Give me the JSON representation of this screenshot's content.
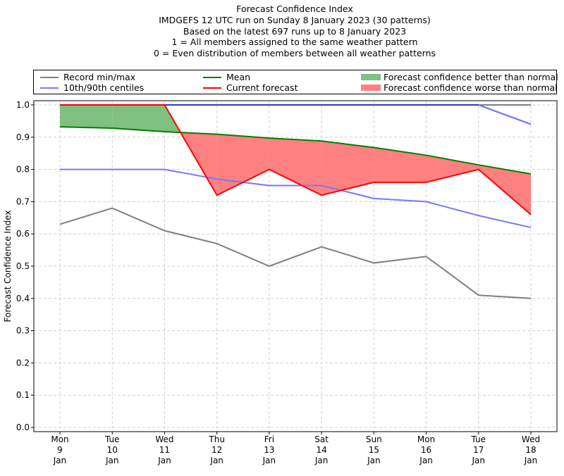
{
  "chart_data": {
    "type": "line",
    "title_lines": [
      "Forecast Confidence Index",
      "IMDGEFS 12 UTC run on Sunday 8 January 2023 (30 patterns)",
      "Based on the latest 697 runs up to 8 January 2023",
      "1 = All members assigned to the same weather pattern",
      "0 = Even distribution of members between all weather patterns"
    ],
    "xlabel": "",
    "ylabel": "Forecast Confidence Index",
    "ylim": [
      0.0,
      1.0
    ],
    "yticks": [
      "0.0",
      "0.1",
      "0.2",
      "0.3",
      "0.4",
      "0.5",
      "0.6",
      "0.7",
      "0.8",
      "0.9",
      "1.0"
    ],
    "grid": true,
    "categories": [
      {
        "day": "Mon",
        "date": "9",
        "month": "Jan"
      },
      {
        "day": "Tue",
        "date": "10",
        "month": "Jan"
      },
      {
        "day": "Wed",
        "date": "11",
        "month": "Jan"
      },
      {
        "day": "Thu",
        "date": "12",
        "month": "Jan"
      },
      {
        "day": "Fri",
        "date": "13",
        "month": "Jan"
      },
      {
        "day": "Sat",
        "date": "14",
        "month": "Jan"
      },
      {
        "day": "Sun",
        "date": "15",
        "month": "Jan"
      },
      {
        "day": "Mon",
        "date": "16",
        "month": "Jan"
      },
      {
        "day": "Tue",
        "date": "17",
        "month": "Jan"
      },
      {
        "day": "Wed",
        "date": "18",
        "month": "Jan"
      }
    ],
    "series": [
      {
        "name": "Record max",
        "color": "#7f7f7f",
        "values": [
          1.0,
          1.0,
          1.0,
          1.0,
          1.0,
          1.0,
          1.0,
          1.0,
          1.0,
          1.0
        ]
      },
      {
        "name": "Record min",
        "color": "#7f7f7f",
        "values": [
          0.63,
          0.68,
          0.61,
          0.57,
          0.5,
          0.56,
          0.51,
          0.53,
          0.41,
          0.4
        ]
      },
      {
        "name": "90th centile",
        "color": "#7777ff",
        "values": [
          1.0,
          1.0,
          1.0,
          1.0,
          1.0,
          1.0,
          1.0,
          1.0,
          1.0,
          0.94
        ]
      },
      {
        "name": "10th centile",
        "color": "#7777ff",
        "values": [
          0.8,
          0.8,
          0.8,
          0.77,
          0.75,
          0.75,
          0.71,
          0.7,
          0.657,
          0.62
        ]
      },
      {
        "name": "Mean",
        "color": "#008000",
        "values": [
          0.932,
          0.928,
          0.917,
          0.909,
          0.897,
          0.888,
          0.868,
          0.844,
          0.814,
          0.786
        ]
      },
      {
        "name": "Current forecast",
        "color": "#ff0000",
        "values": [
          1.0,
          1.0,
          1.0,
          0.72,
          0.8,
          0.72,
          0.76,
          0.76,
          0.8,
          0.66
        ]
      }
    ],
    "fills": {
      "better": {
        "label": "Forecast confidence better than normal",
        "color": "#80c080"
      },
      "worse": {
        "label": "Forecast confidence worse than normal",
        "color": "#ff8080"
      }
    },
    "legend": {
      "placement": "top",
      "entries": [
        {
          "label": "Record min/max",
          "kind": "line",
          "color": "#7f7f7f"
        },
        {
          "label": "10th/90th centiles",
          "kind": "line",
          "color": "#7777ff"
        },
        {
          "label": "Mean",
          "kind": "line",
          "color": "#008000"
        },
        {
          "label": "Current forecast",
          "kind": "line",
          "color": "#ff0000"
        },
        {
          "label": "Forecast confidence better than normal",
          "kind": "patch",
          "color": "#80c080"
        },
        {
          "label": "Forecast confidence worse than normal",
          "kind": "patch",
          "color": "#ff8080"
        }
      ]
    }
  }
}
